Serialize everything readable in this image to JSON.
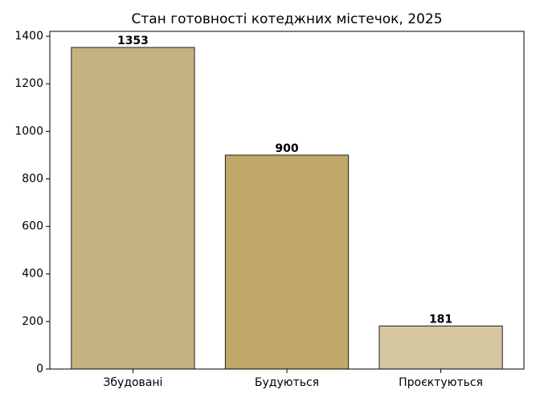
{
  "chart_data": {
    "type": "bar",
    "title": "Стан готовності котеджних містечок, 2025",
    "categories": [
      "Збудовані",
      "Будуються",
      "Проєктуються"
    ],
    "values": [
      1353,
      900,
      181
    ],
    "colors": [
      "#c4b280",
      "#c0a86b",
      "#d6c6a0"
    ],
    "ylim": [
      0,
      1420.65
    ],
    "yticks": [
      0,
      200,
      400,
      600,
      800,
      1000,
      1200,
      1400
    ]
  }
}
